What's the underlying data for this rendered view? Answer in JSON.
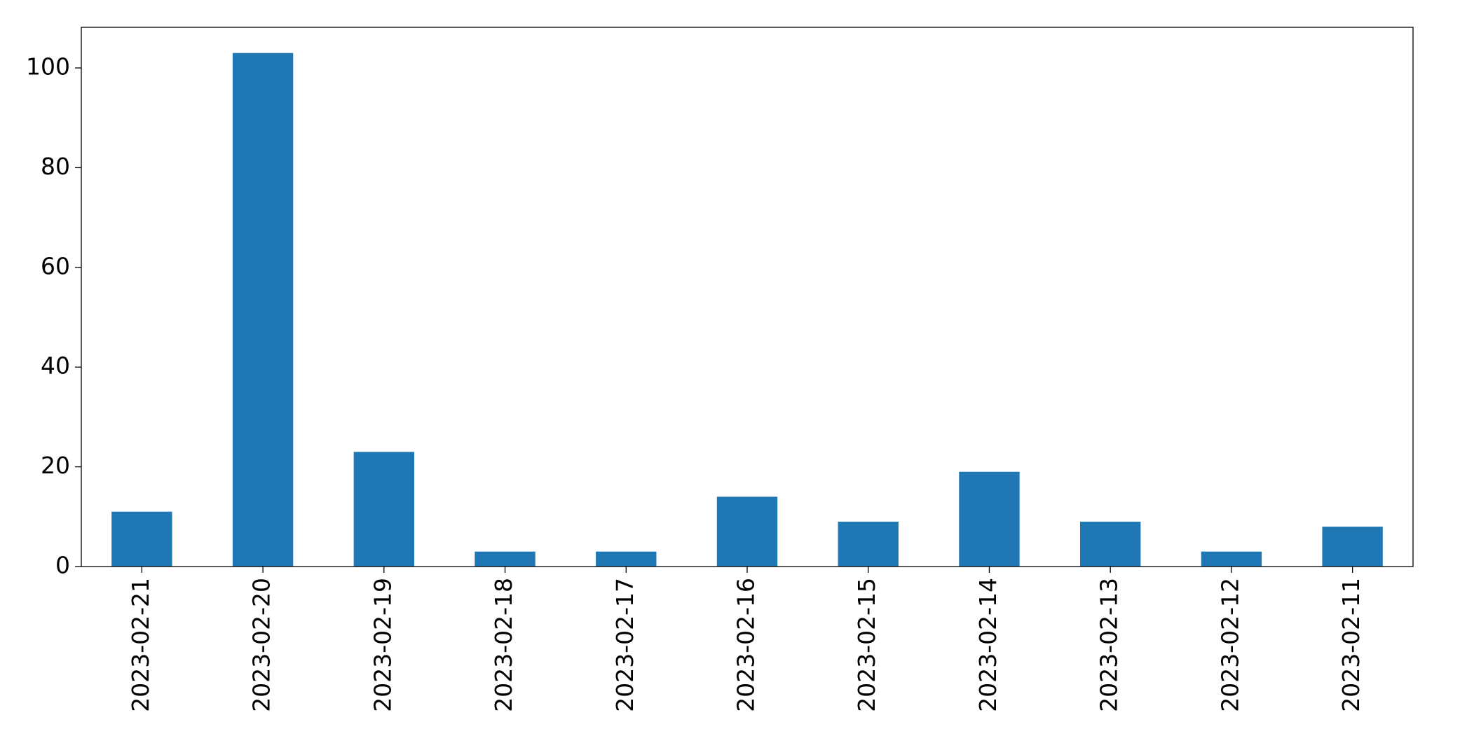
{
  "chart_data": {
    "type": "bar",
    "categories": [
      "2023-02-21",
      "2023-02-20",
      "2023-02-19",
      "2023-02-18",
      "2023-02-17",
      "2023-02-16",
      "2023-02-15",
      "2023-02-14",
      "2023-02-13",
      "2023-02-12",
      "2023-02-11"
    ],
    "values": [
      11,
      103,
      23,
      3,
      3,
      14,
      9,
      19,
      9,
      3,
      8
    ],
    "color": "#1f77b4",
    "ylim": [
      0,
      108.15
    ],
    "yticks": [
      0,
      20,
      40,
      60,
      80,
      100
    ],
    "grid": false
  }
}
